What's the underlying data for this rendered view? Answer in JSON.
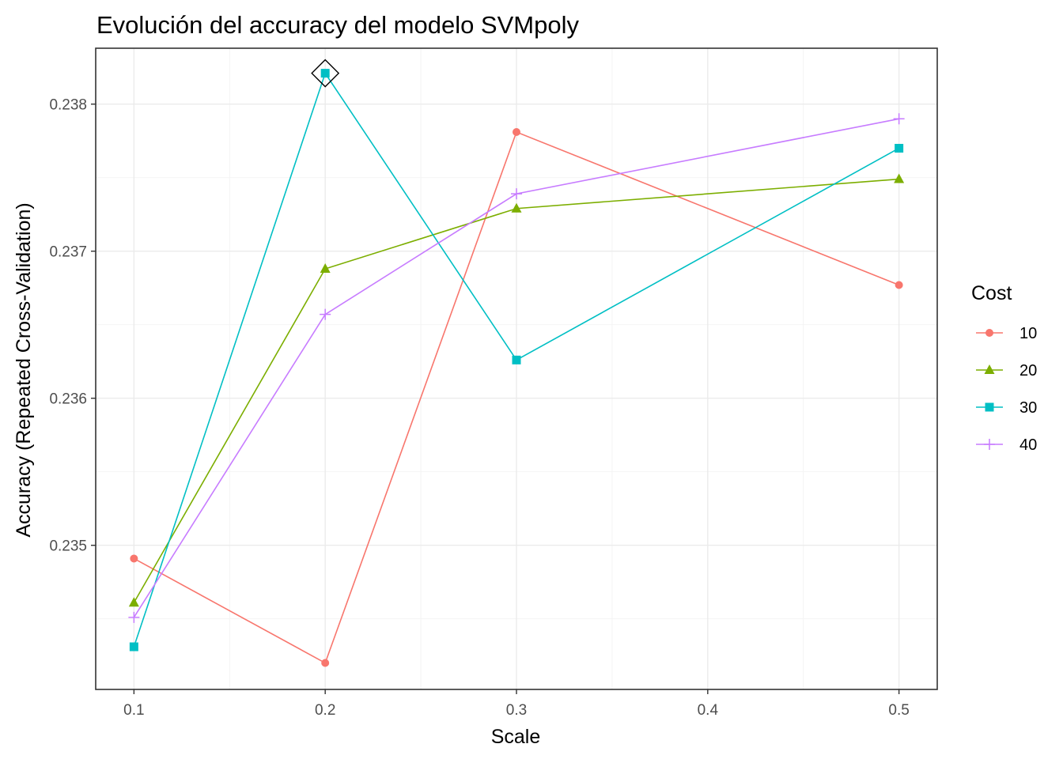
{
  "chart_data": {
    "type": "line",
    "title": "Evolución del accuracy del modelo SVMpoly",
    "xlabel": "Scale",
    "ylabel": "Accuracy (Repeated Cross-Validation)",
    "x": [
      0.1,
      0.2,
      0.3,
      0.5
    ],
    "xlim": [
      0.08,
      0.52
    ],
    "ylim": [
      0.23402,
      0.23838
    ],
    "x_ticks": [
      0.1,
      0.2,
      0.3,
      0.4,
      0.5
    ],
    "y_ticks": [
      0.235,
      0.236,
      0.237,
      0.238
    ],
    "x_tick_labels": [
      "0.1",
      "0.2",
      "0.3",
      "0.4",
      "0.5"
    ],
    "y_tick_labels": [
      "0.235",
      "0.236",
      "0.237",
      "0.238"
    ],
    "grid": true,
    "legend": {
      "title": "Cost",
      "placement": "right"
    },
    "series": [
      {
        "name": "10",
        "color": "#F8766D",
        "marker": "circle",
        "values": [
          0.23491,
          0.2342,
          0.23781,
          0.23677
        ]
      },
      {
        "name": "20",
        "color": "#7CAE00",
        "marker": "triangle",
        "values": [
          0.23461,
          0.23688,
          0.23729,
          0.23749
        ]
      },
      {
        "name": "30",
        "color": "#00BFC4",
        "marker": "square",
        "values": [
          0.23431,
          0.23821,
          0.23626,
          0.2377
        ]
      },
      {
        "name": "40",
        "color": "#C77CFF",
        "marker": "plus",
        "values": [
          0.23451,
          0.23657,
          0.23739,
          0.2379
        ]
      }
    ],
    "highlight": {
      "series": "30",
      "x": 0.2,
      "y": 0.23821,
      "marker": "diamond-open"
    }
  }
}
